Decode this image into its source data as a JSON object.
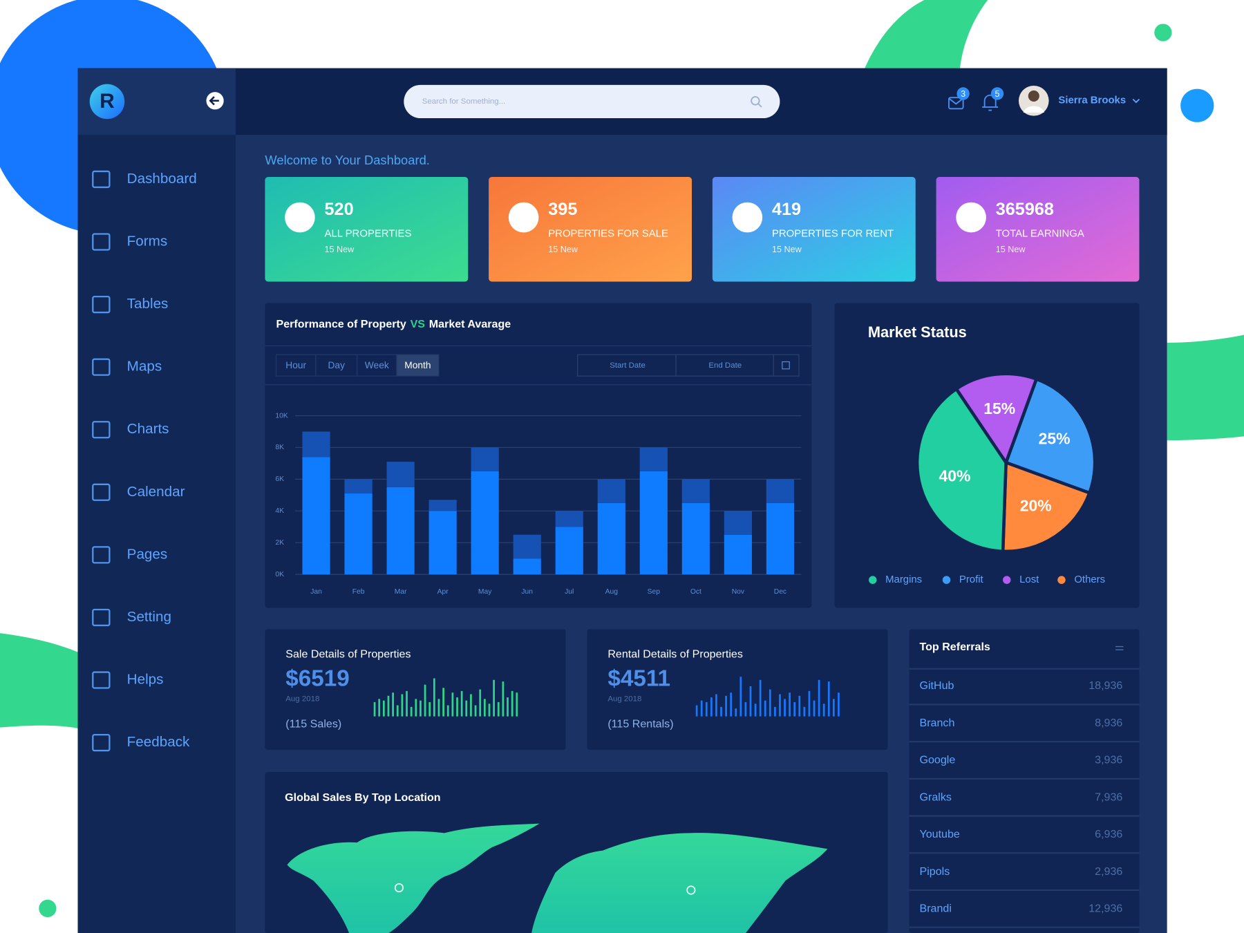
{
  "sidebar": {
    "logo": "R",
    "nav": [
      "Dashboard",
      "Forms",
      "Tables",
      "Maps",
      "Charts",
      "Calendar",
      "Pages",
      "Setting",
      "Helps",
      "Feedback"
    ]
  },
  "header": {
    "search_placeholder": "Search for Something...",
    "mail_badge": 3,
    "bell_badge": 5,
    "user_name": "Sierra Brooks"
  },
  "welcome": "Welcome to Your Dashboard.",
  "stat_cards": [
    {
      "value": 520,
      "label": "ALL PROPERTIES",
      "note": "15 New"
    },
    {
      "value": 395,
      "label": "PROPERTIES FOR SALE",
      "note": "15 New"
    },
    {
      "value": 419,
      "label": "PROPERTIES FOR RENT",
      "note": "15 New"
    },
    {
      "value": 365968,
      "label": "TOTAL EARNINGA",
      "note": "15 New"
    }
  ],
  "performance_controls": {
    "tabs": [
      "Hour",
      "Day",
      "Week",
      "Month"
    ],
    "active_tab": 3,
    "date_inputs": [
      "Start Date",
      "End Date"
    ]
  },
  "chart_data": [
    {
      "type": "bar",
      "stacked": true,
      "title": [
        "Performance of Property",
        "VS",
        "Market Avarage"
      ],
      "title_highlight_color": "#2fd38a",
      "categories": [
        "Jan",
        "Feb",
        "Mar",
        "Apr",
        "May",
        "Jun",
        "Jul",
        "Aug",
        "Sep",
        "Oct",
        "Nov",
        "Dec"
      ],
      "series": [
        {
          "color": "#0f7bff",
          "values": [
            7400,
            5100,
            5500,
            4000,
            6500,
            1000,
            3000,
            4500,
            6500,
            4500,
            2500,
            4500
          ]
        },
        {
          "color": "#1652b4",
          "values": [
            1600,
            900,
            1600,
            700,
            1500,
            1500,
            1000,
            1500,
            1500,
            1500,
            1500,
            1500
          ]
        }
      ],
      "ylim": [
        0,
        10000
      ],
      "yticks": [
        {
          "value": 0,
          "label": "0K"
        },
        {
          "value": 2000,
          "label": "2K"
        },
        {
          "value": 4000,
          "label": "4K"
        },
        {
          "value": 6000,
          "label": "6K"
        },
        {
          "value": 8000,
          "label": "8K"
        },
        {
          "value": 10000,
          "label": "10K"
        }
      ],
      "grid": true
    },
    {
      "type": "pie",
      "title": "Market Status",
      "categories": [
        "Margins",
        "Profit",
        "Lost",
        "Others"
      ],
      "values": [
        40,
        25,
        15,
        20
      ],
      "value_labels": [
        "40%",
        "25%",
        "15%",
        "20%"
      ],
      "colors": [
        "#22cfa0",
        "#3d9cf6",
        "#b35cf0",
        "#ff8a3d"
      ],
      "legend": "bottom"
    },
    {
      "type": "sparkbar",
      "title": "Sale Details of Properties",
      "amount": "$6519",
      "date": "Aug 2018",
      "count": "(115 Sales)",
      "color": "#2fd38a",
      "values": [
        18,
        22,
        20,
        26,
        30,
        14,
        28,
        32,
        12,
        22,
        20,
        40,
        18,
        48,
        22,
        36,
        14,
        30,
        24,
        32,
        20,
        28,
        14,
        34,
        22,
        16,
        46,
        18,
        44,
        24,
        32,
        30
      ]
    },
    {
      "type": "sparkbar",
      "title": "Rental Details of Properties",
      "amount": "$4511",
      "date": "Aug 2018",
      "count": "(115 Rentals)",
      "color": "#1677ff",
      "values": [
        14,
        20,
        18,
        24,
        28,
        12,
        26,
        30,
        10,
        50,
        18,
        38,
        16,
        46,
        20,
        34,
        12,
        28,
        22,
        30,
        18,
        26,
        12,
        32,
        20,
        46,
        16,
        44,
        22,
        30
      ]
    }
  ],
  "map": {
    "title": "Global Sales By Top Location"
  },
  "referrals": {
    "title": "Top Referrals",
    "rows": [
      [
        "GitHub",
        "18,936"
      ],
      [
        "Branch",
        "8,936"
      ],
      [
        "Google",
        "3,936"
      ],
      [
        "Gralks",
        "7,936"
      ],
      [
        "Youtube",
        "6,936"
      ],
      [
        "Pipols",
        "2,936"
      ],
      [
        "Brandi",
        "12,936"
      ]
    ]
  }
}
